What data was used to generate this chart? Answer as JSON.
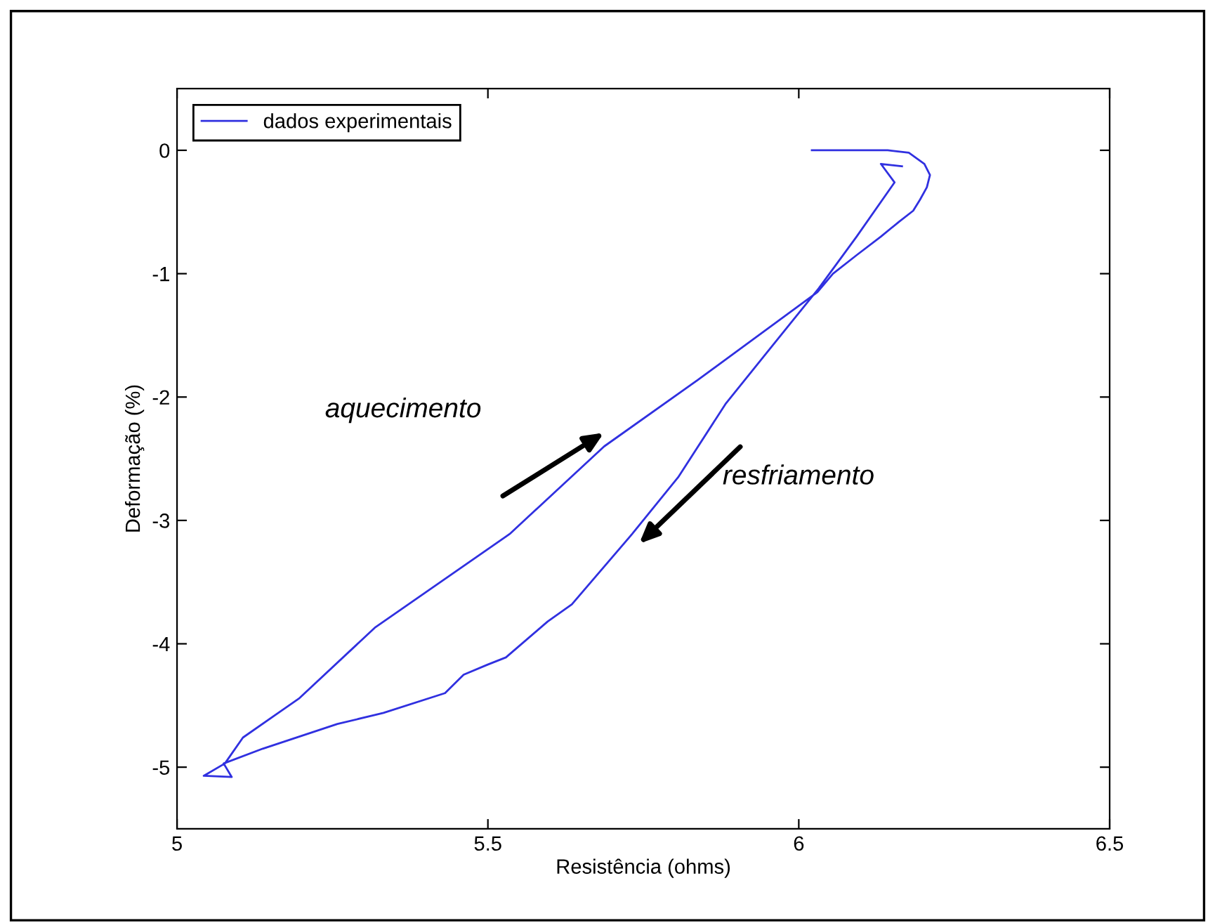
{
  "chart_data": {
    "type": "line",
    "xlabel": "Resistência (ohms)",
    "ylabel": "Deformação (%)",
    "xlim": [
      5,
      6.5
    ],
    "ylim": [
      -5.5,
      0.5
    ],
    "xticks": [
      5,
      5.5,
      6,
      6.5
    ],
    "yticks": [
      -5,
      -4,
      -3,
      -2,
      -1,
      0
    ],
    "grid": false,
    "legend": "top left",
    "marker": "none",
    "line_style": "solid",
    "series": [
      {
        "name": "dados experimentais",
        "color": "#3030e0",
        "x": [
          6.021,
          6.143,
          6.177,
          6.202,
          6.211,
          6.206,
          6.195,
          6.184,
          6.161,
          6.132,
          6.093,
          6.055,
          6.03,
          5.838,
          5.687,
          5.535,
          5.318,
          5.197,
          5.106,
          5.077,
          5.043,
          5.088,
          5.075,
          5.138,
          5.258,
          5.332,
          5.431,
          5.461,
          5.499,
          5.529,
          5.596,
          5.635,
          5.732,
          5.806,
          5.883,
          5.987,
          6.032,
          6.093,
          6.154,
          6.132,
          6.166
        ],
        "values": [
          0,
          0,
          -0.02,
          -0.11,
          -0.2,
          -0.3,
          -0.4,
          -0.49,
          -0.58,
          -0.7,
          -0.85,
          -1.0,
          -1.15,
          -1.86,
          -2.4,
          -3.11,
          -3.87,
          -4.44,
          -4.76,
          -4.97,
          -5.07,
          -5.08,
          -4.97,
          -4.85,
          -4.65,
          -4.56,
          -4.4,
          -4.25,
          -4.17,
          -4.11,
          -3.82,
          -3.68,
          -3.11,
          -2.65,
          -2.05,
          -1.4,
          -1.12,
          -0.7,
          -0.26,
          -0.11,
          -0.13
        ]
      }
    ],
    "annotations": [
      "aquecimento",
      "resfriamento"
    ]
  }
}
